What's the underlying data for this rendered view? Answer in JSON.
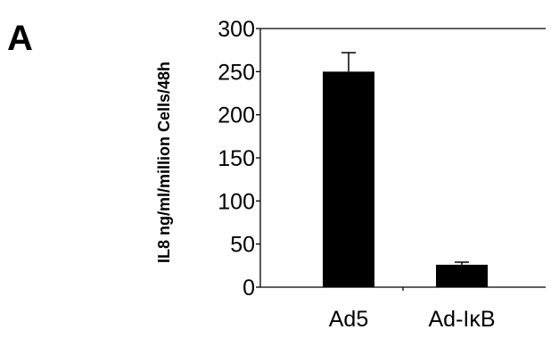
{
  "panel_label": "A",
  "chart_data": {
    "type": "bar",
    "categories": [
      "Ad5",
      "Ad-IκB"
    ],
    "values": [
      250,
      26
    ],
    "error": [
      22,
      3
    ],
    "title": "",
    "xlabel": "",
    "ylabel": "IL8 ng/ml/million Cells/48h",
    "ylim": [
      0,
      300
    ],
    "yticks": [
      "0",
      "50",
      "100",
      "150",
      "200",
      "250",
      "300"
    ],
    "bar_color": "#000000",
    "grid": false
  }
}
